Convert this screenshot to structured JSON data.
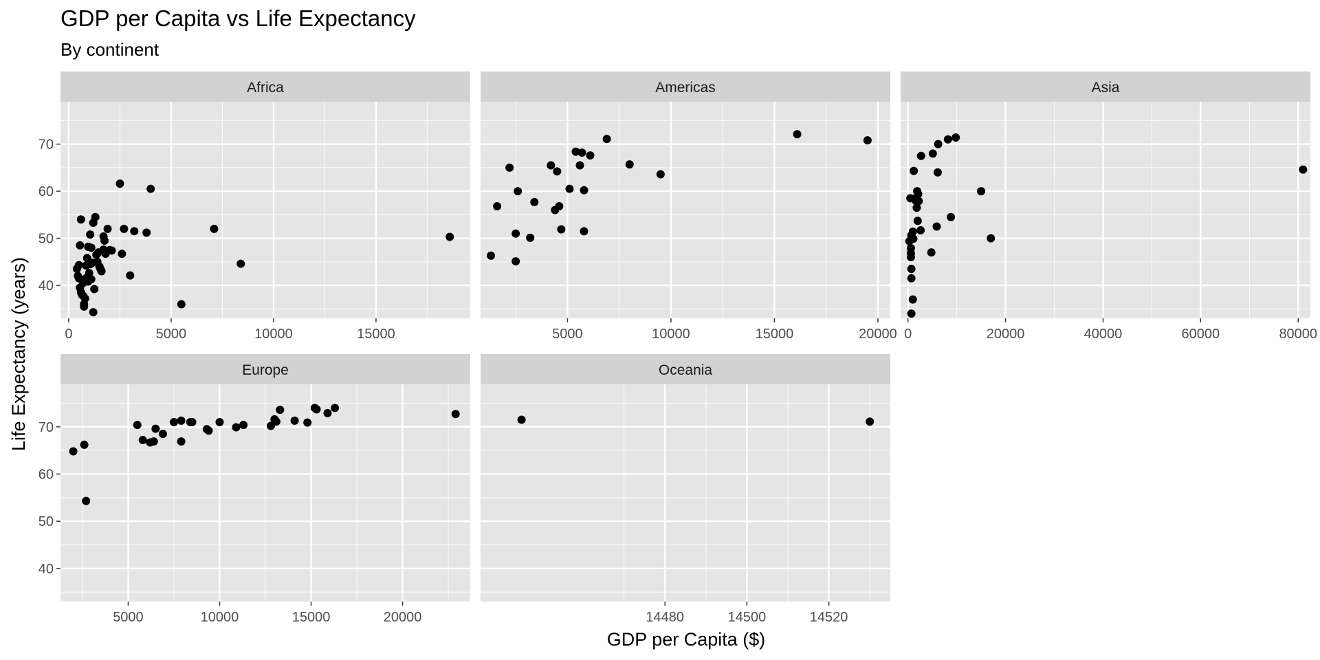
{
  "chart_data": {
    "type": "scatter",
    "title": "GDP per Capita vs Life Expectancy",
    "subtitle": "By continent",
    "xlabel": "GDP per Capita ($)",
    "ylabel": "Life Expectancy (years)",
    "ylim": [
      33,
      79
    ],
    "y_ticks": [
      40,
      50,
      60,
      70
    ],
    "point_color": "#000000",
    "panel_bg": "#e5e5e5",
    "strip_bg": "#d2d2d2",
    "grid": true,
    "facets": [
      {
        "name": "Africa",
        "xlim": [
          -400,
          19600
        ],
        "x_ticks": [
          0,
          5000,
          10000,
          15000
        ],
        "x_tick_labels": [
          "0",
          "5000",
          "10000",
          "15000"
        ],
        "points": [
          [
            400,
            43.5
          ],
          [
            450,
            42.0
          ],
          [
            500,
            41.5
          ],
          [
            500,
            44.3
          ],
          [
            550,
            48.5
          ],
          [
            600,
            54.0
          ],
          [
            550,
            39.5
          ],
          [
            600,
            38.5
          ],
          [
            650,
            38.0
          ],
          [
            700,
            37.8
          ],
          [
            700,
            40.5
          ],
          [
            750,
            36.0
          ],
          [
            750,
            35.5
          ],
          [
            800,
            37.2
          ],
          [
            850,
            41.5
          ],
          [
            850,
            44.2
          ],
          [
            900,
            45.8
          ],
          [
            950,
            48.2
          ],
          [
            950,
            40.8
          ],
          [
            1000,
            42.6
          ],
          [
            1050,
            44.5
          ],
          [
            1050,
            50.8
          ],
          [
            1100,
            48.0
          ],
          [
            1100,
            41.3
          ],
          [
            1150,
            44.8
          ],
          [
            1200,
            34.3
          ],
          [
            1200,
            53.3
          ],
          [
            1250,
            39.2
          ],
          [
            1300,
            54.5
          ],
          [
            1350,
            46.5
          ],
          [
            1400,
            45.0
          ],
          [
            1450,
            47.0
          ],
          [
            1500,
            44.0
          ],
          [
            1550,
            43.5
          ],
          [
            1600,
            43.0
          ],
          [
            1700,
            50.4
          ],
          [
            1700,
            47.6
          ],
          [
            1750,
            49.5
          ],
          [
            1800,
            46.7
          ],
          [
            1900,
            52.0
          ],
          [
            2000,
            47.5
          ],
          [
            2100,
            47.4
          ],
          [
            2500,
            61.6
          ],
          [
            2600,
            46.7
          ],
          [
            2700,
            52.0
          ],
          [
            3000,
            42.1
          ],
          [
            3200,
            51.5
          ],
          [
            3800,
            51.2
          ],
          [
            4000,
            60.5
          ],
          [
            5500,
            36.0
          ],
          [
            7100,
            52.0
          ],
          [
            8400,
            44.6
          ],
          [
            18600,
            50.3
          ]
        ]
      },
      {
        "name": "Americas",
        "xlim": [
          800,
          20600
        ],
        "x_ticks": [
          5000,
          10000,
          15000,
          20000
        ],
        "x_tick_labels": [
          "5000",
          "10000",
          "15000",
          "20000"
        ],
        "points": [
          [
            1300,
            46.3
          ],
          [
            1600,
            56.8
          ],
          [
            2200,
            65.0
          ],
          [
            2500,
            51.0
          ],
          [
            2500,
            45.1
          ],
          [
            2600,
            60.0
          ],
          [
            3200,
            50.1
          ],
          [
            3400,
            57.7
          ],
          [
            4200,
            65.5
          ],
          [
            4400,
            56.0
          ],
          [
            4500,
            64.2
          ],
          [
            4600,
            56.8
          ],
          [
            4700,
            51.9
          ],
          [
            5100,
            60.5
          ],
          [
            5400,
            68.4
          ],
          [
            5600,
            65.5
          ],
          [
            5700,
            68.2
          ],
          [
            5800,
            60.2
          ],
          [
            5800,
            51.5
          ],
          [
            6100,
            67.6
          ],
          [
            6900,
            71.1
          ],
          [
            8000,
            65.7
          ],
          [
            9500,
            63.6
          ],
          [
            16100,
            72.1
          ],
          [
            19500,
            70.8
          ]
        ]
      },
      {
        "name": "Asia",
        "xlim": [
          -1500,
          82500
        ],
        "x_ticks": [
          0,
          20000,
          40000,
          60000,
          80000
        ],
        "x_tick_labels": [
          "0",
          "20000",
          "40000",
          "60000",
          "80000"
        ],
        "points": [
          [
            300,
            49.4
          ],
          [
            500,
            58.5
          ],
          [
            600,
            46.0
          ],
          [
            600,
            46.8
          ],
          [
            600,
            47.9
          ],
          [
            700,
            43.5
          ],
          [
            700,
            41.5
          ],
          [
            700,
            34.0
          ],
          [
            700,
            50.6
          ],
          [
            1000,
            37.0
          ],
          [
            1000,
            51.4
          ],
          [
            1100,
            49.9
          ],
          [
            1200,
            64.3
          ],
          [
            1300,
            58.4
          ],
          [
            1600,
            58.0
          ],
          [
            1800,
            56.5
          ],
          [
            1900,
            60.0
          ],
          [
            2000,
            53.7
          ],
          [
            2100,
            59.4
          ],
          [
            2200,
            57.9
          ],
          [
            2600,
            51.7
          ],
          [
            2700,
            67.5
          ],
          [
            4800,
            47.0
          ],
          [
            5100,
            68.0
          ],
          [
            5900,
            52.5
          ],
          [
            6100,
            64.0
          ],
          [
            6200,
            70.0
          ],
          [
            8200,
            71.0
          ],
          [
            8800,
            54.5
          ],
          [
            9800,
            71.4
          ],
          [
            15000,
            60.0
          ],
          [
            17000,
            50.0
          ],
          [
            81000,
            64.6
          ]
        ]
      },
      {
        "name": "Europe",
        "xlim": [
          1300,
          23700
        ],
        "x_ticks": [
          5000,
          10000,
          15000,
          20000
        ],
        "x_tick_labels": [
          "5000",
          "10000",
          "15000",
          "20000"
        ],
        "points": [
          [
            2000,
            64.8
          ],
          [
            2600,
            66.2
          ],
          [
            2700,
            54.3
          ],
          [
            5500,
            70.4
          ],
          [
            5800,
            67.2
          ],
          [
            6200,
            66.7
          ],
          [
            6400,
            66.9
          ],
          [
            6500,
            69.6
          ],
          [
            6900,
            68.5
          ],
          [
            7500,
            71.0
          ],
          [
            7900,
            66.9
          ],
          [
            7900,
            71.3
          ],
          [
            8400,
            71.0
          ],
          [
            8500,
            71.0
          ],
          [
            9300,
            69.5
          ],
          [
            9400,
            69.2
          ],
          [
            10000,
            71.0
          ],
          [
            10900,
            69.9
          ],
          [
            11300,
            70.4
          ],
          [
            12800,
            70.2
          ],
          [
            13000,
            71.6
          ],
          [
            13100,
            71.1
          ],
          [
            13300,
            73.6
          ],
          [
            14100,
            71.3
          ],
          [
            14800,
            70.9
          ],
          [
            15200,
            74.0
          ],
          [
            15300,
            73.7
          ],
          [
            15900,
            72.9
          ],
          [
            16300,
            74.0
          ],
          [
            22900,
            72.7
          ]
        ]
      },
      {
        "name": "Oceania",
        "xlim": [
          14435,
          14535
        ],
        "x_ticks": [
          14480,
          14500,
          14520
        ],
        "x_tick_labels": [
          "14480",
          "14500",
          "14520"
        ],
        "points": [
          [
            14445,
            71.5
          ],
          [
            14530,
            71.1
          ]
        ]
      }
    ]
  }
}
